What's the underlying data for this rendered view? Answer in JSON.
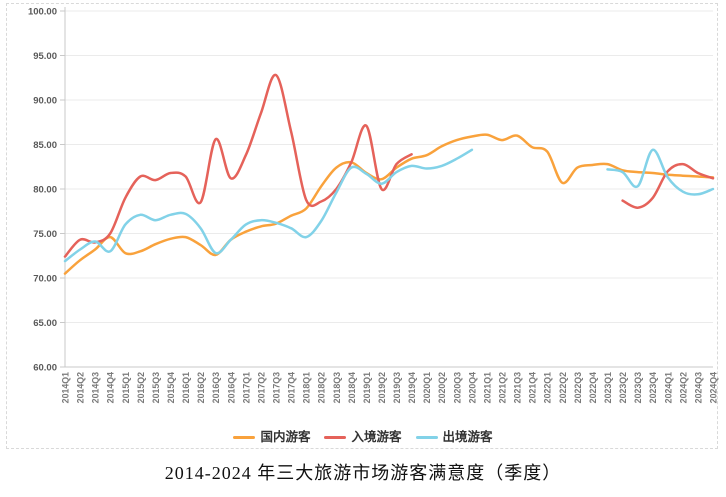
{
  "title": "2014-2024 年三大旅游市场游客满意度（季度）",
  "chart_data": {
    "type": "line",
    "smooth": true,
    "title": "2014-2024 年三大旅游市场游客满意度（季度）",
    "xlabel": "",
    "ylabel": "",
    "ylim": [
      60,
      100
    ],
    "ytick_step": 5,
    "ytick_labels": [
      "60.00",
      "65.00",
      "70.00",
      "75.00",
      "80.00",
      "85.00",
      "90.00",
      "95.00",
      "100.00"
    ],
    "grid": true,
    "legend_position": "bottom",
    "categories": [
      "2014Q1",
      "2014Q2",
      "2014Q3",
      "2014Q4",
      "2015Q1",
      "2015Q2",
      "2015Q3",
      "2015Q4",
      "2016Q1",
      "2016Q2",
      "2016Q3",
      "2016Q4",
      "2017Q1",
      "2017Q2",
      "2017Q3",
      "2017Q4",
      "2018Q1",
      "2018Q2",
      "2018Q3",
      "2018Q4",
      "2019Q1",
      "2019Q2",
      "2019Q3",
      "2019Q4",
      "2020Q1",
      "2020Q2",
      "2020Q3",
      "2020Q4",
      "2021Q1",
      "2021Q2",
      "2021Q3",
      "2021Q4",
      "2022Q1",
      "2022Q2",
      "2022Q3",
      "2022Q4",
      "2023Q1",
      "2023Q2",
      "2023Q3",
      "2023Q4",
      "2024Q1",
      "2024Q2",
      "2024Q3",
      "2024Q4"
    ],
    "series": [
      {
        "id": "domestic",
        "name": "国内游客",
        "color": "#F9A23C",
        "values": [
          70.5,
          72.0,
          73.2,
          74.6,
          72.8,
          73.0,
          73.8,
          74.4,
          74.6,
          73.7,
          72.6,
          74.3,
          75.2,
          75.8,
          76.1,
          77.0,
          77.8,
          80.3,
          82.4,
          83.0,
          81.8,
          81.1,
          82.4,
          83.4,
          83.8,
          84.8,
          85.5,
          85.9,
          86.1,
          85.5,
          86.0,
          84.7,
          84.2,
          80.7,
          82.4,
          82.7,
          82.8,
          82.1,
          81.9,
          81.8,
          81.6,
          81.5,
          81.4,
          81.3
        ]
      },
      {
        "id": "inbound",
        "name": "入境游客",
        "color": "#E5625A",
        "values": [
          72.4,
          74.3,
          74.0,
          75.0,
          79.0,
          81.4,
          81.0,
          81.8,
          81.4,
          78.5,
          85.6,
          81.2,
          83.8,
          88.5,
          92.8,
          86.5,
          78.8,
          78.6,
          80.0,
          83.0,
          87.1,
          80.0,
          82.8,
          83.9,
          null,
          null,
          null,
          null,
          null,
          null,
          null,
          null,
          null,
          null,
          null,
          null,
          null,
          78.7,
          77.9,
          79.0,
          82.0,
          82.8,
          81.8,
          81.2
        ]
      },
      {
        "id": "outbound",
        "name": "出境游客",
        "color": "#82D2E8",
        "values": [
          71.9,
          73.2,
          74.1,
          73.0,
          76.0,
          77.1,
          76.5,
          77.1,
          77.2,
          75.6,
          72.8,
          74.3,
          76.0,
          76.5,
          76.2,
          75.6,
          74.6,
          76.4,
          79.6,
          82.4,
          81.7,
          80.6,
          81.9,
          82.6,
          82.3,
          82.6,
          83.4,
          84.4,
          null,
          null,
          null,
          null,
          null,
          null,
          null,
          null,
          82.2,
          81.9,
          80.3,
          84.4,
          81.3,
          79.7,
          79.4,
          80.0
        ]
      }
    ]
  }
}
